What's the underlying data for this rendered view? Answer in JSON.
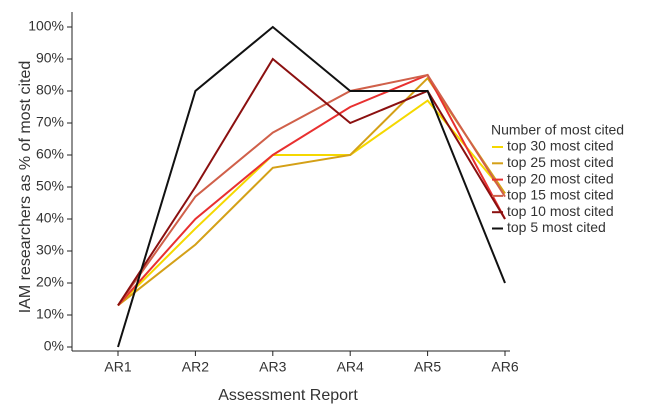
{
  "chart_data": {
    "type": "line",
    "xlabel": "Assessment Report",
    "ylabel": "IAM researchers as % of most cited",
    "legend_title": "Number of most cited",
    "legend": "right",
    "categories": [
      "AR1",
      "AR2",
      "AR3",
      "AR4",
      "AR5",
      "AR6"
    ],
    "ylim": [
      0,
      100
    ],
    "yticks": [
      {
        "value": 0,
        "label": "0%"
      },
      {
        "value": 10,
        "label": "10%"
      },
      {
        "value": 20,
        "label": "20%"
      },
      {
        "value": 30,
        "label": "30%"
      },
      {
        "value": 40,
        "label": "40%"
      },
      {
        "value": 50,
        "label": "50%"
      },
      {
        "value": 60,
        "label": "60%"
      },
      {
        "value": 70,
        "label": "70%"
      },
      {
        "value": 80,
        "label": "80%"
      },
      {
        "value": 90,
        "label": "90%"
      },
      {
        "value": 100,
        "label": "100%"
      }
    ],
    "series": [
      {
        "name": "top 30 most cited",
        "color": "#f5d800",
        "values": [
          13,
          37,
          60,
          60,
          77,
          48
        ]
      },
      {
        "name": "top 25 most cited",
        "color": "#d4a017",
        "values": [
          13,
          32,
          56,
          60,
          84,
          48
        ]
      },
      {
        "name": "top 20 most cited",
        "color": "#e83030",
        "values": [
          13,
          40,
          60,
          75,
          85,
          40
        ]
      },
      {
        "name": "top 15 most cited",
        "color": "#d0604a",
        "values": [
          13,
          47,
          67,
          80,
          85,
          47
        ]
      },
      {
        "name": "top 10 most cited",
        "color": "#8b1010",
        "values": [
          13,
          50,
          90,
          70,
          80,
          40
        ]
      },
      {
        "name": "top 5 most cited",
        "color": "#111111",
        "values": [
          0,
          80,
          100,
          80,
          80,
          20
        ]
      }
    ]
  }
}
